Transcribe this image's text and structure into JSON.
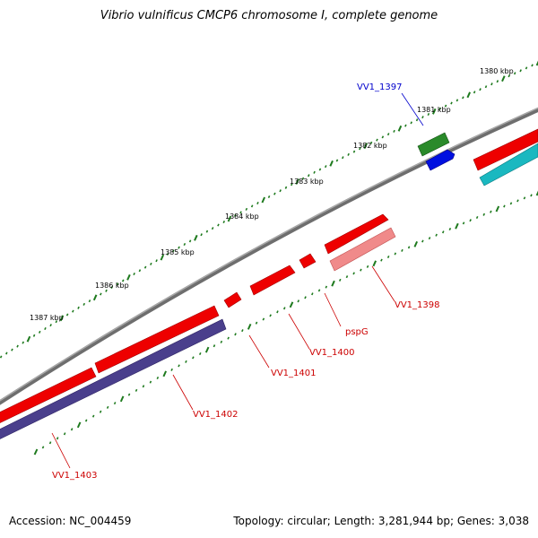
{
  "title": "Vibrio vulnificus CMCP6 chromosome I, complete genome",
  "footer": {
    "accession": "Accession: NC_004459",
    "summary": "Topology: circular; Length: 3,281,944 bp; Genes: 3,038"
  },
  "ticks": [
    {
      "label": "1380 kbp"
    },
    {
      "label": "1381 kbp"
    },
    {
      "label": "1382 kbp"
    },
    {
      "label": "1383 kbp"
    },
    {
      "label": "1384 kbp"
    },
    {
      "label": "1385 kbp"
    },
    {
      "label": "1386 kbp"
    },
    {
      "label": "1387 kbp"
    }
  ],
  "genes": [
    {
      "name": "VV1_1397",
      "color": "#0000cc"
    },
    {
      "name": "VV1_1398",
      "color": "#cc0000"
    },
    {
      "name": "pspG",
      "color": "#cc0000"
    },
    {
      "name": "VV1_1400",
      "color": "#cc0000"
    },
    {
      "name": "VV1_1401",
      "color": "#cc0000"
    },
    {
      "name": "VV1_1402",
      "color": "#cc0000"
    },
    {
      "name": "VV1_1403",
      "color": "#cc0000"
    }
  ],
  "colors": {
    "backbone": "#7a7a7a",
    "forward_gene": "#ee0000",
    "reverse_gene_light": "#f08a8a",
    "reverse_gene_dark": "#4a3f8c",
    "teal_gene": "#1ab8c0",
    "green_gene": "#2a8a2a",
    "blue_gene": "#0010e0",
    "tick": "#1e7a1e"
  }
}
